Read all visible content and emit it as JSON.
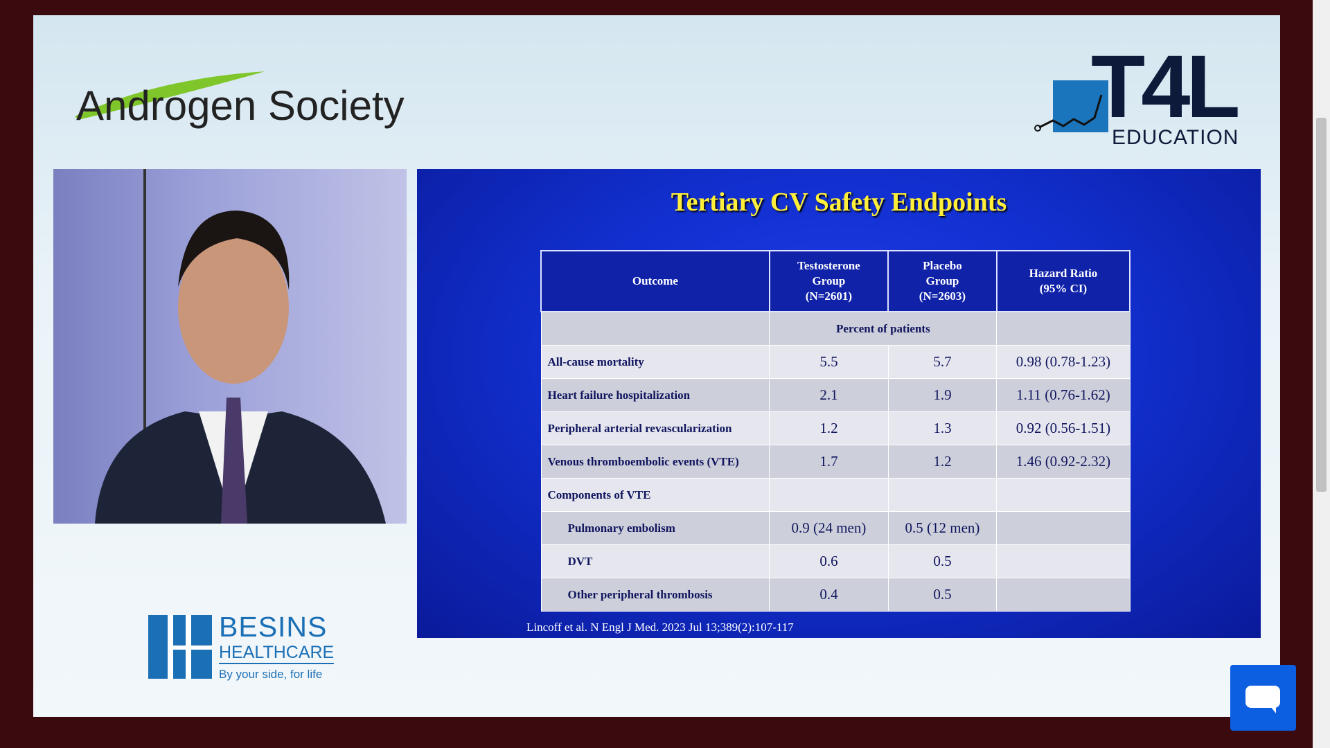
{
  "header": {
    "left_logo": "Androgen Society",
    "right_logo": {
      "mark": "T4L",
      "sub": "EDUCATION"
    }
  },
  "slide": {
    "title": "Tertiary CV Safety Endpoints",
    "table": {
      "columns": [
        [
          "Outcome"
        ],
        [
          "Testosterone",
          "Group",
          "(N=2601)"
        ],
        [
          "Placebo",
          "Group",
          "(N=2603)"
        ],
        [
          "Hazard Ratio",
          "(95% CI)"
        ]
      ],
      "subheader": "Percent of patients",
      "rows": [
        {
          "outcome": "All-cause mortality",
          "values": [
            "5.5",
            "5.7",
            "0.98 (0.78-1.23)"
          ]
        },
        {
          "outcome": "Heart failure hospitalization",
          "values": [
            "2.1",
            "1.9",
            "1.11 (0.76-1.62)"
          ]
        },
        {
          "outcome": "Peripheral arterial revascularization",
          "values": [
            "1.2",
            "1.3",
            "0.92 (0.56-1.51)"
          ]
        },
        {
          "outcome": "Venous thromboembolic events (VTE)",
          "values": [
            "1.7",
            "1.2",
            "1.46 (0.92-2.32)"
          ]
        },
        {
          "outcome": "Components of  VTE",
          "values": []
        },
        {
          "outcome": "Pulmonary embolism",
          "indent": true,
          "values": [
            "0.9 (24 men)",
            "0.5 (12 men)"
          ]
        },
        {
          "outcome": "DVT",
          "indent": true,
          "values": [
            "0.6",
            "0.5"
          ]
        },
        {
          "outcome": "Other peripheral thrombosis",
          "indent": true,
          "values": [
            "0.4",
            "0.5"
          ]
        }
      ]
    },
    "citation": "Lincoff et al. N Engl J Med. 2023 Jul 13;389(2):107-117"
  },
  "sponsor": {
    "name": "BESINS",
    "sub": "HEALTHCARE",
    "tagline": "By your side, for life"
  }
}
